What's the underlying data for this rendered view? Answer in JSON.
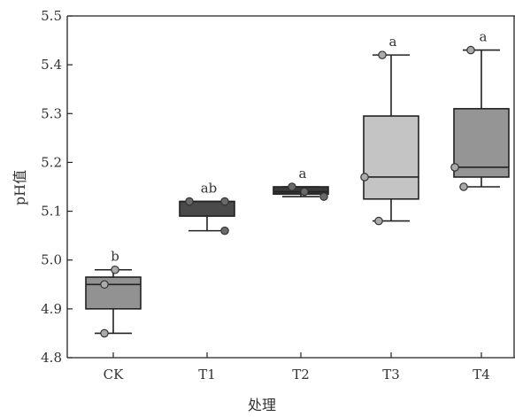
{
  "chart_data": {
    "type": "box",
    "xlabel": "处理",
    "ylabel": "pH值",
    "ylim": [
      4.8,
      5.5
    ],
    "yticks": [
      "4.8",
      "4.9",
      "5.0",
      "5.1",
      "5.2",
      "5.3",
      "5.4",
      "5.5"
    ],
    "categories": [
      "CK",
      "T1",
      "T2",
      "T3",
      "T4"
    ],
    "grid": false,
    "boxes": [
      {
        "category": "CK",
        "min": 4.85,
        "q1": 4.9,
        "median": 4.95,
        "q3": 4.965,
        "max": 4.98,
        "points": [
          4.98,
          4.95,
          4.85
        ],
        "fill": "#929292",
        "sig": "b"
      },
      {
        "category": "T1",
        "min": 5.06,
        "q1": 5.09,
        "median": 5.12,
        "q3": 5.12,
        "max": 5.12,
        "points": [
          5.12,
          5.12,
          5.06
        ],
        "fill": "#4a4a4a",
        "sig": "ab"
      },
      {
        "category": "T2",
        "min": 5.13,
        "q1": 5.135,
        "median": 5.14,
        "q3": 5.15,
        "max": 5.15,
        "points": [
          5.15,
          5.14,
          5.13
        ],
        "fill": "#3a3a3a",
        "sig": "a"
      },
      {
        "category": "T3",
        "min": 5.08,
        "q1": 5.125,
        "median": 5.17,
        "q3": 5.295,
        "max": 5.42,
        "points": [
          5.42,
          5.17,
          5.08
        ],
        "fill": "#c4c4c4",
        "sig": "a"
      },
      {
        "category": "T4",
        "min": 5.15,
        "q1": 5.17,
        "median": 5.19,
        "q3": 5.31,
        "max": 5.43,
        "points": [
          5.43,
          5.19,
          5.15
        ],
        "fill": "#959595",
        "sig": "a"
      }
    ]
  }
}
